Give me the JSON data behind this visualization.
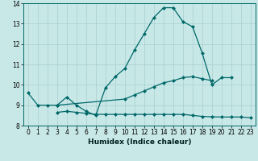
{
  "xlabel": "Humidex (Indice chaleur)",
  "xlim": [
    -0.5,
    23.5
  ],
  "ylim": [
    8,
    14
  ],
  "yticks": [
    8,
    9,
    10,
    11,
    12,
    13,
    14
  ],
  "xticks": [
    0,
    1,
    2,
    3,
    4,
    5,
    6,
    7,
    8,
    9,
    10,
    11,
    12,
    13,
    14,
    15,
    16,
    17,
    18,
    19,
    20,
    21,
    22,
    23
  ],
  "bg_color": "#c8e8e8",
  "grid_color": "#a8cece",
  "line_color": "#006868",
  "line1_x": [
    0,
    1,
    2,
    3,
    4,
    5,
    6,
    7,
    8,
    9,
    10,
    11,
    12,
    13,
    14,
    15,
    16,
    17,
    18,
    19,
    20,
    21
  ],
  "line1_y": [
    9.6,
    9.0,
    9.0,
    9.0,
    9.4,
    9.0,
    8.7,
    8.5,
    9.85,
    10.4,
    10.8,
    11.7,
    12.5,
    13.3,
    13.78,
    13.78,
    13.1,
    12.85,
    11.55,
    10.0,
    10.35,
    10.35
  ],
  "line2_x": [
    3,
    10,
    11,
    12,
    13,
    14,
    15,
    16,
    17,
    18,
    19
  ],
  "line2_y": [
    9.0,
    9.3,
    9.5,
    9.7,
    9.9,
    10.1,
    10.2,
    10.35,
    10.4,
    10.3,
    10.2
  ],
  "line3_x": [
    3,
    4,
    5,
    6,
    7,
    8,
    9,
    10,
    11,
    12,
    13,
    14,
    15,
    16,
    17,
    18,
    19,
    20,
    21,
    22,
    23
  ],
  "line3_y": [
    8.65,
    8.7,
    8.65,
    8.6,
    8.55,
    8.55,
    8.55,
    8.55,
    8.55,
    8.55,
    8.55,
    8.55,
    8.55,
    8.55,
    8.5,
    8.45,
    8.43,
    8.42,
    8.42,
    8.42,
    8.38
  ]
}
